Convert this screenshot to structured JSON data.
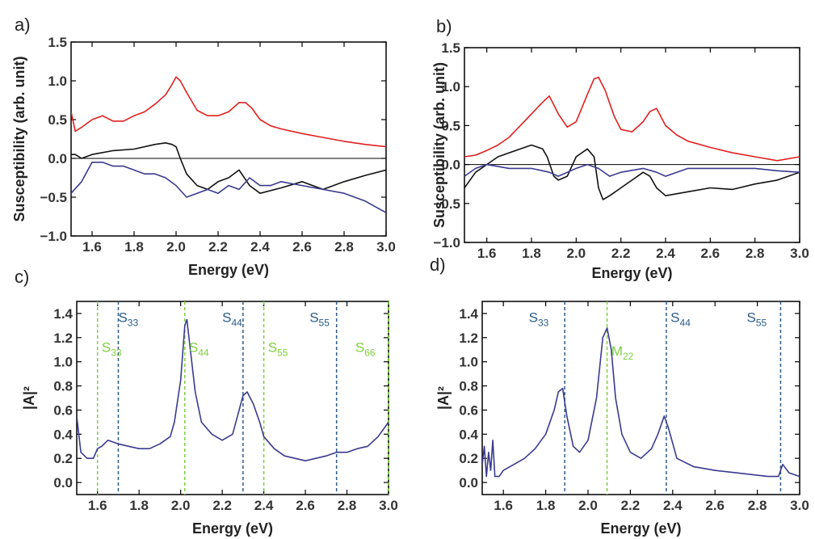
{
  "chart_data": [
    {
      "panel": "a)",
      "type": "line",
      "xlabel": "Energy (eV)",
      "ylabel": "Susceptibility (arb. unit)",
      "xlim": [
        1.5,
        3.0
      ],
      "ylim": [
        -1.0,
        1.5
      ],
      "xticks": [
        1.6,
        1.8,
        2.0,
        2.2,
        2.4,
        2.6,
        2.8,
        3.0
      ],
      "xtick_labels": [
        "1.6",
        "1.8",
        "2.0",
        "2.2",
        "2.4",
        "2.6",
        "2.8",
        "3.0"
      ],
      "yticks": [
        -1.0,
        -0.5,
        0.0,
        0.5,
        1.0,
        1.5
      ],
      "ytick_labels": [
        "−1.0",
        "−0.5",
        "0.0",
        "0.5",
        "1.0",
        "1.5"
      ],
      "zero_line": true,
      "series": [
        {
          "name": "red",
          "color": "#e02020",
          "x": [
            1.5,
            1.52,
            1.55,
            1.6,
            1.65,
            1.7,
            1.75,
            1.8,
            1.85,
            1.9,
            1.95,
            1.98,
            2.0,
            2.02,
            2.05,
            2.1,
            2.15,
            2.2,
            2.25,
            2.3,
            2.33,
            2.36,
            2.4,
            2.45,
            2.5,
            2.6,
            2.7,
            2.8,
            2.9,
            3.0
          ],
          "y": [
            0.6,
            0.35,
            0.4,
            0.5,
            0.55,
            0.48,
            0.48,
            0.55,
            0.6,
            0.7,
            0.82,
            0.95,
            1.05,
            1.0,
            0.85,
            0.62,
            0.55,
            0.55,
            0.6,
            0.72,
            0.72,
            0.65,
            0.5,
            0.42,
            0.38,
            0.32,
            0.27,
            0.22,
            0.18,
            0.15
          ]
        },
        {
          "name": "black",
          "color": "#111111",
          "x": [
            1.5,
            1.52,
            1.55,
            1.6,
            1.7,
            1.8,
            1.9,
            1.95,
            1.98,
            2.0,
            2.02,
            2.05,
            2.1,
            2.15,
            2.2,
            2.25,
            2.3,
            2.35,
            2.4,
            2.5,
            2.6,
            2.7,
            2.8,
            2.9,
            3.0
          ],
          "y": [
            0.05,
            0.05,
            0.0,
            0.05,
            0.1,
            0.12,
            0.18,
            0.2,
            0.18,
            0.15,
            0.0,
            -0.2,
            -0.35,
            -0.4,
            -0.3,
            -0.25,
            -0.15,
            -0.35,
            -0.45,
            -0.38,
            -0.3,
            -0.4,
            -0.3,
            -0.22,
            -0.15
          ]
        },
        {
          "name": "blue",
          "color": "#3a3a8f",
          "x": [
            1.5,
            1.55,
            1.6,
            1.65,
            1.7,
            1.75,
            1.8,
            1.85,
            1.9,
            1.95,
            2.0,
            2.05,
            2.1,
            2.15,
            2.2,
            2.25,
            2.3,
            2.35,
            2.4,
            2.45,
            2.5,
            2.6,
            2.7,
            2.8,
            2.9,
            3.0
          ],
          "y": [
            -0.45,
            -0.3,
            -0.05,
            -0.05,
            -0.1,
            -0.1,
            -0.15,
            -0.2,
            -0.2,
            -0.25,
            -0.35,
            -0.5,
            -0.45,
            -0.4,
            -0.45,
            -0.35,
            -0.4,
            -0.25,
            -0.35,
            -0.35,
            -0.3,
            -0.35,
            -0.4,
            -0.45,
            -0.55,
            -0.7
          ]
        }
      ]
    },
    {
      "panel": "b)",
      "type": "line",
      "xlabel": "Energy (eV)",
      "ylabel": "Susceptibility (arb. unit)",
      "xlim": [
        1.5,
        3.0
      ],
      "ylim": [
        -1.0,
        1.5
      ],
      "xticks": [
        1.6,
        1.8,
        2.0,
        2.2,
        2.4,
        2.6,
        2.8,
        3.0
      ],
      "xtick_labels": [
        "1.6",
        "1.8",
        "2.0",
        "2.2",
        "2.4",
        "2.6",
        "2.8",
        "3.0"
      ],
      "yticks": [
        -1.0,
        -0.5,
        0.0,
        0.5,
        1.0,
        1.5
      ],
      "ytick_labels": [
        "−1.0",
        "−0.5",
        "0.0",
        "0.5",
        "1.0",
        "1.5"
      ],
      "zero_line": true,
      "series": [
        {
          "name": "red",
          "color": "#e02020",
          "x": [
            1.5,
            1.55,
            1.6,
            1.65,
            1.7,
            1.75,
            1.8,
            1.85,
            1.88,
            1.92,
            1.96,
            2.0,
            2.05,
            2.08,
            2.1,
            2.13,
            2.17,
            2.2,
            2.25,
            2.3,
            2.33,
            2.36,
            2.4,
            2.45,
            2.5,
            2.6,
            2.7,
            2.8,
            2.9,
            3.0
          ],
          "y": [
            0.1,
            0.12,
            0.18,
            0.25,
            0.35,
            0.5,
            0.65,
            0.8,
            0.88,
            0.65,
            0.48,
            0.55,
            0.9,
            1.1,
            1.12,
            0.95,
            0.62,
            0.45,
            0.42,
            0.55,
            0.68,
            0.72,
            0.5,
            0.38,
            0.3,
            0.22,
            0.15,
            0.1,
            0.05,
            0.1
          ]
        },
        {
          "name": "black",
          "color": "#111111",
          "x": [
            1.5,
            1.55,
            1.6,
            1.65,
            1.7,
            1.75,
            1.8,
            1.85,
            1.87,
            1.9,
            1.92,
            1.96,
            2.0,
            2.05,
            2.08,
            2.1,
            2.12,
            2.15,
            2.2,
            2.25,
            2.3,
            2.33,
            2.36,
            2.4,
            2.5,
            2.6,
            2.7,
            2.8,
            2.9,
            3.0
          ],
          "y": [
            -0.3,
            -0.1,
            0.0,
            0.1,
            0.15,
            0.2,
            0.25,
            0.2,
            0.1,
            -0.15,
            -0.2,
            -0.15,
            0.1,
            0.2,
            0.1,
            -0.3,
            -0.45,
            -0.4,
            -0.3,
            -0.2,
            -0.1,
            -0.15,
            -0.3,
            -0.4,
            -0.35,
            -0.3,
            -0.32,
            -0.25,
            -0.2,
            -0.1
          ]
        },
        {
          "name": "blue",
          "color": "#3a3a8f",
          "x": [
            1.5,
            1.55,
            1.6,
            1.7,
            1.8,
            1.85,
            1.88,
            1.92,
            1.96,
            2.0,
            2.05,
            2.1,
            2.15,
            2.2,
            2.3,
            2.36,
            2.4,
            2.5,
            2.6,
            2.7,
            2.8,
            2.9,
            3.0
          ],
          "y": [
            -0.15,
            -0.05,
            0.0,
            -0.05,
            -0.05,
            -0.08,
            -0.1,
            -0.15,
            -0.1,
            -0.05,
            0.0,
            -0.05,
            -0.15,
            -0.1,
            -0.05,
            -0.1,
            -0.15,
            -0.05,
            -0.05,
            -0.05,
            -0.05,
            -0.08,
            -0.1
          ]
        }
      ]
    },
    {
      "panel": "c)",
      "type": "line",
      "xlabel": "Energy (eV)",
      "ylabel": "|A|²",
      "xlim": [
        1.5,
        3.0
      ],
      "ylim": [
        -0.1,
        1.5
      ],
      "xticks": [
        1.6,
        1.8,
        2.0,
        2.2,
        2.4,
        2.6,
        2.8,
        3.0
      ],
      "xtick_labels": [
        "1.6",
        "1.8",
        "2.0",
        "2.2",
        "2.4",
        "2.6",
        "2.8",
        "3.0"
      ],
      "yticks": [
        0.0,
        0.2,
        0.4,
        0.6,
        0.8,
        1.0,
        1.2,
        1.4
      ],
      "ytick_labels": [
        "0.0",
        "0.2",
        "0.4",
        "0.6",
        "0.8",
        "1.0",
        "1.2",
        "1.4"
      ],
      "series": [
        {
          "name": "|A|²",
          "color": "#3a3a8f",
          "x": [
            1.5,
            1.52,
            1.55,
            1.58,
            1.6,
            1.62,
            1.65,
            1.7,
            1.75,
            1.8,
            1.85,
            1.9,
            1.95,
            1.97,
            2.0,
            2.02,
            2.03,
            2.05,
            2.07,
            2.1,
            2.15,
            2.2,
            2.25,
            2.3,
            2.32,
            2.35,
            2.38,
            2.4,
            2.45,
            2.5,
            2.55,
            2.6,
            2.65,
            2.7,
            2.75,
            2.8,
            2.85,
            2.9,
            2.95,
            3.0
          ],
          "y": [
            0.55,
            0.25,
            0.2,
            0.2,
            0.28,
            0.3,
            0.35,
            0.32,
            0.3,
            0.28,
            0.28,
            0.32,
            0.38,
            0.5,
            0.85,
            1.3,
            1.35,
            1.05,
            0.75,
            0.5,
            0.4,
            0.35,
            0.4,
            0.72,
            0.75,
            0.65,
            0.5,
            0.38,
            0.28,
            0.22,
            0.2,
            0.18,
            0.2,
            0.22,
            0.25,
            0.25,
            0.28,
            0.3,
            0.38,
            0.5
          ]
        }
      ],
      "vlines": [
        {
          "x": 1.6,
          "color": "#7dcf3a"
        },
        {
          "x": 1.7,
          "color": "#2b5a8a"
        },
        {
          "x": 2.02,
          "color": "#7dcf3a"
        },
        {
          "x": 2.3,
          "color": "#2b5a8a"
        },
        {
          "x": 2.4,
          "color": "#7dcf3a"
        },
        {
          "x": 2.75,
          "color": "#2b5a8a"
        },
        {
          "x": 3.0,
          "color": "#7dcf3a"
        }
      ],
      "annotations": [
        {
          "base": "S",
          "sub": "33",
          "color": "#2b5a8a",
          "x": 1.7,
          "y": 1.33
        },
        {
          "base": "S",
          "sub": "33",
          "color": "#7dcf3a",
          "x": 1.62,
          "y": 1.08
        },
        {
          "base": "S",
          "sub": "44",
          "color": "#2b5a8a",
          "x": 2.2,
          "y": 1.33
        },
        {
          "base": "S",
          "sub": "44",
          "color": "#7dcf3a",
          "x": 2.04,
          "y": 1.08
        },
        {
          "base": "S",
          "sub": "55",
          "color": "#2b5a8a",
          "x": 2.62,
          "y": 1.33
        },
        {
          "base": "S",
          "sub": "55",
          "color": "#7dcf3a",
          "x": 2.42,
          "y": 1.08
        },
        {
          "base": "S",
          "sub": "66",
          "color": "#7dcf3a",
          "x": 2.84,
          "y": 1.08
        }
      ]
    },
    {
      "panel": "d)",
      "type": "line",
      "xlabel": "Energy (eV)",
      "ylabel": "|A|²",
      "xlim": [
        1.5,
        3.0
      ],
      "ylim": [
        -0.1,
        1.5
      ],
      "xticks": [
        1.6,
        1.8,
        2.0,
        2.2,
        2.4,
        2.6,
        2.8,
        3.0
      ],
      "xtick_labels": [
        "1.6",
        "1.8",
        "2.0",
        "2.2",
        "2.4",
        "2.6",
        "2.8",
        "3.0"
      ],
      "yticks": [
        0.0,
        0.2,
        0.4,
        0.6,
        0.8,
        1.0,
        1.2,
        1.4
      ],
      "ytick_labels": [
        "0.0",
        "0.2",
        "0.4",
        "0.6",
        "0.8",
        "1.0",
        "1.2",
        "1.4"
      ],
      "series": [
        {
          "name": "|A|²",
          "color": "#3a3a8f",
          "x": [
            1.5,
            1.51,
            1.52,
            1.53,
            1.54,
            1.55,
            1.56,
            1.58,
            1.6,
            1.65,
            1.7,
            1.75,
            1.8,
            1.84,
            1.86,
            1.88,
            1.9,
            1.93,
            1.96,
            2.0,
            2.04,
            2.07,
            2.09,
            2.11,
            2.13,
            2.16,
            2.2,
            2.25,
            2.3,
            2.33,
            2.36,
            2.38,
            2.42,
            2.5,
            2.6,
            2.7,
            2.8,
            2.85,
            2.9,
            2.92,
            2.95,
            3.0
          ],
          "y": [
            0.15,
            0.3,
            0.05,
            0.25,
            0.1,
            0.35,
            0.05,
            0.05,
            0.1,
            0.15,
            0.2,
            0.28,
            0.4,
            0.6,
            0.75,
            0.78,
            0.55,
            0.3,
            0.25,
            0.35,
            0.7,
            1.2,
            1.28,
            1.1,
            0.7,
            0.4,
            0.25,
            0.2,
            0.28,
            0.4,
            0.55,
            0.45,
            0.2,
            0.13,
            0.1,
            0.08,
            0.06,
            0.05,
            0.05,
            0.15,
            0.08,
            0.05
          ]
        }
      ],
      "vlines": [
        {
          "x": 1.89,
          "color": "#2b5a8a"
        },
        {
          "x": 2.09,
          "color": "#7dcf3a"
        },
        {
          "x": 2.37,
          "color": "#2b5a8a"
        },
        {
          "x": 2.91,
          "color": "#2b5a8a"
        }
      ],
      "annotations": [
        {
          "base": "S",
          "sub": "33",
          "color": "#2b5a8a",
          "x": 1.72,
          "y": 1.33
        },
        {
          "base": "M",
          "sub": "22",
          "color": "#7dcf3a",
          "x": 2.11,
          "y": 1.05
        },
        {
          "base": "S",
          "sub": "44",
          "color": "#2b5a8a",
          "x": 2.39,
          "y": 1.33
        },
        {
          "base": "S",
          "sub": "55",
          "color": "#2b5a8a",
          "x": 2.75,
          "y": 1.33
        }
      ]
    }
  ]
}
